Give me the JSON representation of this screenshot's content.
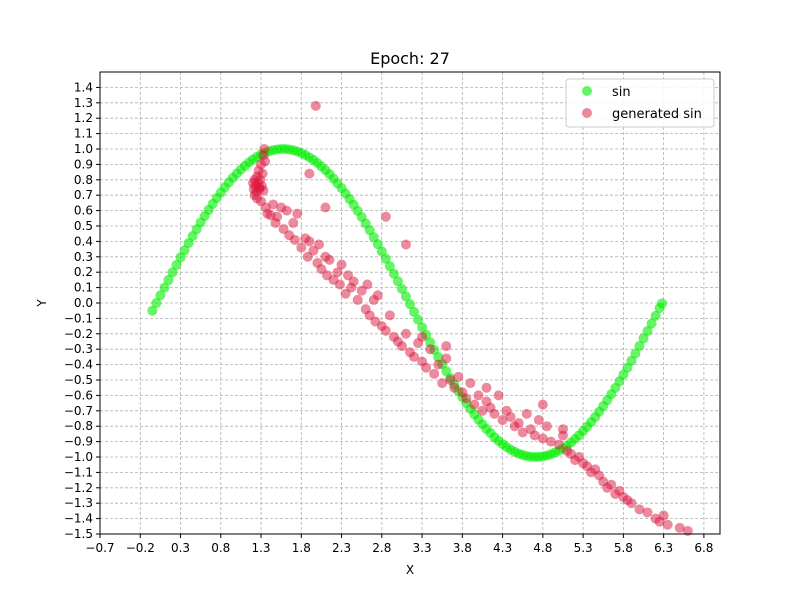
{
  "chart_data": {
    "type": "scatter",
    "title": "Epoch: 27",
    "xlabel": "X",
    "ylabel": "Y",
    "xlim": [
      -0.7,
      7.0
    ],
    "ylim": [
      -1.5,
      1.5
    ],
    "xticks": [
      -0.7,
      -0.2,
      0.3,
      0.8,
      1.3,
      1.8,
      2.3,
      2.8,
      3.3,
      3.8,
      4.3,
      4.8,
      5.3,
      5.8,
      6.3,
      6.8
    ],
    "xtick_labels": [
      "−0.7",
      "−0.2",
      "0.3",
      "0.8",
      "1.3",
      "1.8",
      "2.3",
      "2.8",
      "3.3",
      "3.8",
      "4.3",
      "4.8",
      "5.3",
      "5.8",
      "6.3",
      "6.8"
    ],
    "yticks": [
      1.4,
      1.3,
      1.2,
      1.1,
      1.0,
      0.9,
      0.8,
      0.7,
      0.6,
      0.5,
      0.4,
      0.3,
      0.2,
      0.1,
      0.0,
      -0.1,
      -0.2,
      -0.3,
      -0.4,
      -0.5,
      -0.6,
      -0.7,
      -0.8,
      -0.9,
      -1.0,
      -1.1,
      -1.2,
      -1.3,
      -1.4,
      -1.5
    ],
    "ytick_labels": [
      "1.4",
      "1.3",
      "1.2",
      "1.1",
      "1.0",
      "0.9",
      "0.8",
      "0.7",
      "0.6",
      "0.5",
      "0.4",
      "0.3",
      "0.2",
      "0.1",
      "0.0",
      "−0.1",
      "−0.2",
      "−0.3",
      "−0.4",
      "−0.5",
      "−0.6",
      "−0.7",
      "−0.8",
      "−0.9",
      "−1.0",
      "−1.1",
      "−1.2",
      "−1.3",
      "−1.4",
      "−1.5"
    ],
    "grid": true,
    "legend_position": "top-right",
    "series": [
      {
        "name": "sin",
        "color": "#00ee00",
        "x": [
          -0.05,
          0.0,
          0.05,
          0.1,
          0.15,
          0.2,
          0.25,
          0.3,
          0.35,
          0.4,
          0.45,
          0.5,
          0.55,
          0.6,
          0.65,
          0.7,
          0.75,
          0.8,
          0.85,
          0.9,
          0.95,
          1.0,
          1.05,
          1.1,
          1.15,
          1.2,
          1.25,
          1.3,
          1.35,
          1.4,
          1.45,
          1.5,
          1.55,
          1.6,
          1.65,
          1.7,
          1.75,
          1.8,
          1.85,
          1.9,
          1.95,
          2.0,
          2.05,
          2.1,
          2.15,
          2.2,
          2.25,
          2.3,
          2.35,
          2.4,
          2.45,
          2.5,
          2.55,
          2.6,
          2.65,
          2.7,
          2.75,
          2.8,
          2.85,
          2.9,
          2.95,
          3.0,
          3.05,
          3.1,
          3.15,
          3.2,
          3.25,
          3.3,
          3.35,
          3.4,
          3.45,
          3.5,
          3.55,
          3.6,
          3.65,
          3.7,
          3.75,
          3.8,
          3.85,
          3.9,
          3.95,
          4.0,
          4.05,
          4.1,
          4.15,
          4.2,
          4.25,
          4.3,
          4.35,
          4.4,
          4.45,
          4.5,
          4.55,
          4.6,
          4.65,
          4.7,
          4.75,
          4.8,
          4.85,
          4.9,
          4.95,
          5.0,
          5.05,
          5.1,
          5.15,
          5.2,
          5.25,
          5.3,
          5.35,
          5.4,
          5.45,
          5.5,
          5.55,
          5.6,
          5.65,
          5.7,
          5.75,
          5.8,
          5.85,
          5.9,
          5.95,
          6.0,
          6.05,
          6.1,
          6.15,
          6.2,
          6.25,
          6.28
        ],
        "y": [
          -0.05,
          0.0,
          0.05,
          0.1,
          0.149,
          0.199,
          0.247,
          0.296,
          0.343,
          0.389,
          0.435,
          0.479,
          0.523,
          0.565,
          0.605,
          0.644,
          0.682,
          0.717,
          0.751,
          0.783,
          0.813,
          0.841,
          0.867,
          0.891,
          0.913,
          0.932,
          0.949,
          0.964,
          0.976,
          0.985,
          0.993,
          0.997,
          1.0,
          1.0,
          0.997,
          0.992,
          0.984,
          0.974,
          0.961,
          0.946,
          0.929,
          0.909,
          0.887,
          0.863,
          0.837,
          0.808,
          0.778,
          0.746,
          0.711,
          0.675,
          0.638,
          0.598,
          0.558,
          0.516,
          0.472,
          0.427,
          0.382,
          0.335,
          0.287,
          0.239,
          0.19,
          0.141,
          0.091,
          0.042,
          -0.008,
          -0.058,
          -0.108,
          -0.158,
          -0.207,
          -0.256,
          -0.304,
          -0.351,
          -0.397,
          -0.443,
          -0.487,
          -0.53,
          -0.572,
          -0.612,
          -0.651,
          -0.688,
          -0.723,
          -0.757,
          -0.788,
          -0.818,
          -0.845,
          -0.872,
          -0.895,
          -0.916,
          -0.935,
          -0.952,
          -0.966,
          -0.978,
          -0.987,
          -0.994,
          -0.998,
          -1.0,
          -0.999,
          -0.996,
          -0.99,
          -0.982,
          -0.971,
          -0.959,
          -0.944,
          -0.926,
          -0.906,
          -0.883,
          -0.859,
          -0.832,
          -0.803,
          -0.773,
          -0.74,
          -0.706,
          -0.669,
          -0.631,
          -0.592,
          -0.551,
          -0.508,
          -0.465,
          -0.42,
          -0.375,
          -0.328,
          -0.279,
          -0.23,
          -0.182,
          -0.133,
          -0.083,
          -0.033,
          -0.003
        ]
      },
      {
        "name": "generated sin",
        "color": "#dc143c",
        "x": [
          1.2,
          1.21,
          1.22,
          1.23,
          1.24,
          1.25,
          1.26,
          1.27,
          1.28,
          1.29,
          1.3,
          1.31,
          1.32,
          1.33,
          1.34,
          1.35,
          1.22,
          1.25,
          1.28,
          1.3,
          1.33,
          1.36,
          1.38,
          1.42,
          1.45,
          1.48,
          1.5,
          1.55,
          1.58,
          1.62,
          1.65,
          1.7,
          1.72,
          1.75,
          1.8,
          1.85,
          1.88,
          1.9,
          1.95,
          2.0,
          2.02,
          2.05,
          2.1,
          2.12,
          2.15,
          2.2,
          2.25,
          2.28,
          2.3,
          2.35,
          2.38,
          2.42,
          2.45,
          2.5,
          2.55,
          2.6,
          2.62,
          2.65,
          2.7,
          2.72,
          2.75,
          2.8,
          2.85,
          2.9,
          2.95,
          3.0,
          3.05,
          3.1,
          3.15,
          3.2,
          3.25,
          3.3,
          3.35,
          3.4,
          3.45,
          3.5,
          3.55,
          3.6,
          3.65,
          3.7,
          3.75,
          3.8,
          3.85,
          3.9,
          3.95,
          4.0,
          4.05,
          4.1,
          4.15,
          4.2,
          4.25,
          4.3,
          4.35,
          4.4,
          4.45,
          4.5,
          4.55,
          4.6,
          4.65,
          4.7,
          4.75,
          4.8,
          4.85,
          4.9,
          5.0,
          5.05,
          5.1,
          5.15,
          5.2,
          5.25,
          5.3,
          5.35,
          5.4,
          5.45,
          5.5,
          5.55,
          5.6,
          5.65,
          5.7,
          5.75,
          5.8,
          5.85,
          5.9,
          6.0,
          6.1,
          6.2,
          6.25,
          6.3,
          6.35,
          6.5,
          6.6,
          1.98,
          2.85,
          3.1,
          2.1,
          3.6,
          4.8,
          5.05,
          1.9,
          3.3,
          4.1
        ],
        "y": [
          0.78,
          0.74,
          0.8,
          0.76,
          0.72,
          0.82,
          0.78,
          0.86,
          0.74,
          0.8,
          0.9,
          0.76,
          0.84,
          0.96,
          1.0,
          0.92,
          0.7,
          0.68,
          0.75,
          0.66,
          0.73,
          0.62,
          0.58,
          0.57,
          0.64,
          0.52,
          0.56,
          0.62,
          0.48,
          0.6,
          0.44,
          0.52,
          0.41,
          0.58,
          0.36,
          0.42,
          0.3,
          0.4,
          0.34,
          0.26,
          0.38,
          0.22,
          0.3,
          0.18,
          0.28,
          0.15,
          0.2,
          0.12,
          0.25,
          0.06,
          0.18,
          0.1,
          0.14,
          0.02,
          0.08,
          -0.04,
          0.12,
          -0.08,
          0.02,
          -0.12,
          0.05,
          -0.15,
          -0.18,
          -0.08,
          -0.22,
          -0.25,
          -0.28,
          -0.2,
          -0.32,
          -0.35,
          -0.26,
          -0.38,
          -0.42,
          -0.3,
          -0.46,
          -0.4,
          -0.52,
          -0.36,
          -0.5,
          -0.55,
          -0.48,
          -0.58,
          -0.62,
          -0.52,
          -0.66,
          -0.6,
          -0.7,
          -0.64,
          -0.68,
          -0.72,
          -0.6,
          -0.76,
          -0.7,
          -0.74,
          -0.8,
          -0.78,
          -0.84,
          -0.72,
          -0.82,
          -0.86,
          -0.76,
          -0.88,
          -0.8,
          -0.9,
          -0.92,
          -0.86,
          -0.96,
          -0.98,
          -1.02,
          -1.0,
          -1.04,
          -1.06,
          -1.1,
          -1.08,
          -1.12,
          -1.16,
          -1.2,
          -1.18,
          -1.24,
          -1.22,
          -1.26,
          -1.28,
          -1.3,
          -1.34,
          -1.36,
          -1.4,
          -1.42,
          -1.38,
          -1.44,
          -1.46,
          -1.48,
          1.28,
          0.56,
          0.38,
          0.62,
          -0.28,
          -0.66,
          -0.82,
          0.84,
          -0.22,
          -0.55
        ]
      }
    ]
  }
}
